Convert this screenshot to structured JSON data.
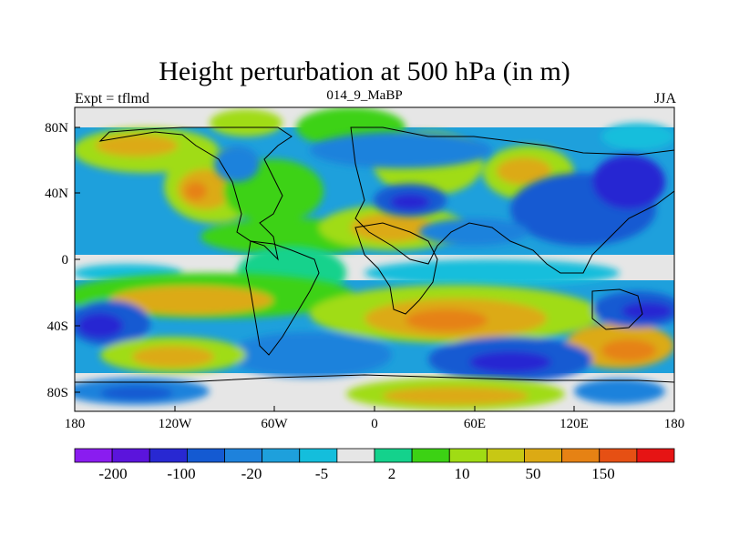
{
  "title": "Height perturbation at 500 hPa (in m)",
  "subtitle_left": "Expt = tflmd",
  "subtitle_center": "014_9_MaBP",
  "subtitle_right": "JJA",
  "map": {
    "lon_ticks": [
      "180",
      "120W",
      "60W",
      "0",
      "60E",
      "120E",
      "180"
    ],
    "lat_ticks": [
      "80N",
      "40N",
      "0",
      "40S",
      "80S"
    ]
  },
  "colorbar": {
    "colors": [
      "#8a1cf0",
      "#5b14dc",
      "#2828d2",
      "#145ad2",
      "#1e82dc",
      "#1ea0dc",
      "#14bedc",
      "#e6e6e6",
      "#14d28c",
      "#3cd214",
      "#a0dc14",
      "#c8c814",
      "#dcaa14",
      "#e68214",
      "#e65014",
      "#e61414"
    ],
    "labels": [
      "-200",
      "-100",
      "-20",
      "-5",
      "2",
      "10",
      "50",
      "150"
    ]
  }
}
